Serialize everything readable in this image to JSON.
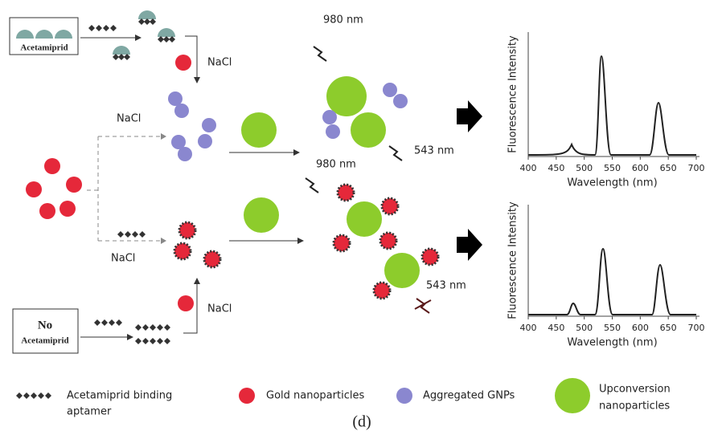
{
  "top_box": {
    "label": "Acetamiprid"
  },
  "bottom_box": {
    "line_1": "No",
    "line_2": "Acetamiprid"
  },
  "labels": {
    "nacl_top": "NaCl",
    "nacl_upper_branch": "NaCl",
    "nacl_lower_branch": "NaCl",
    "nacl_bottom": "NaCl",
    "laser_top": "980 nm",
    "emission_top": "543 nm",
    "laser_bottom": "980 nm",
    "emission_bottom": "543 nm"
  },
  "spectra": [
    {
      "y_label": "Fluorescence Intensity",
      "x_label": "Wavelength (nm)",
      "xticks": [
        400,
        450,
        500,
        550,
        600,
        650,
        700
      ]
    },
    {
      "y_label": "Fluorescence Intensity",
      "x_label": "Wavelength (nm)",
      "xticks": [
        400,
        450,
        500,
        550,
        600,
        650,
        700
      ]
    }
  ],
  "legend": {
    "aptamer": {
      "line_1": "Acetamiprid binding",
      "line_2": "aptamer"
    },
    "gold": {
      "label": "Gold nanoparticles"
    },
    "aggregated": {
      "label": "Aggregated GNPs"
    },
    "upconversion": {
      "line_1": "Upconversion",
      "line_2": "nanoparticles"
    }
  },
  "caption": "(d)"
}
